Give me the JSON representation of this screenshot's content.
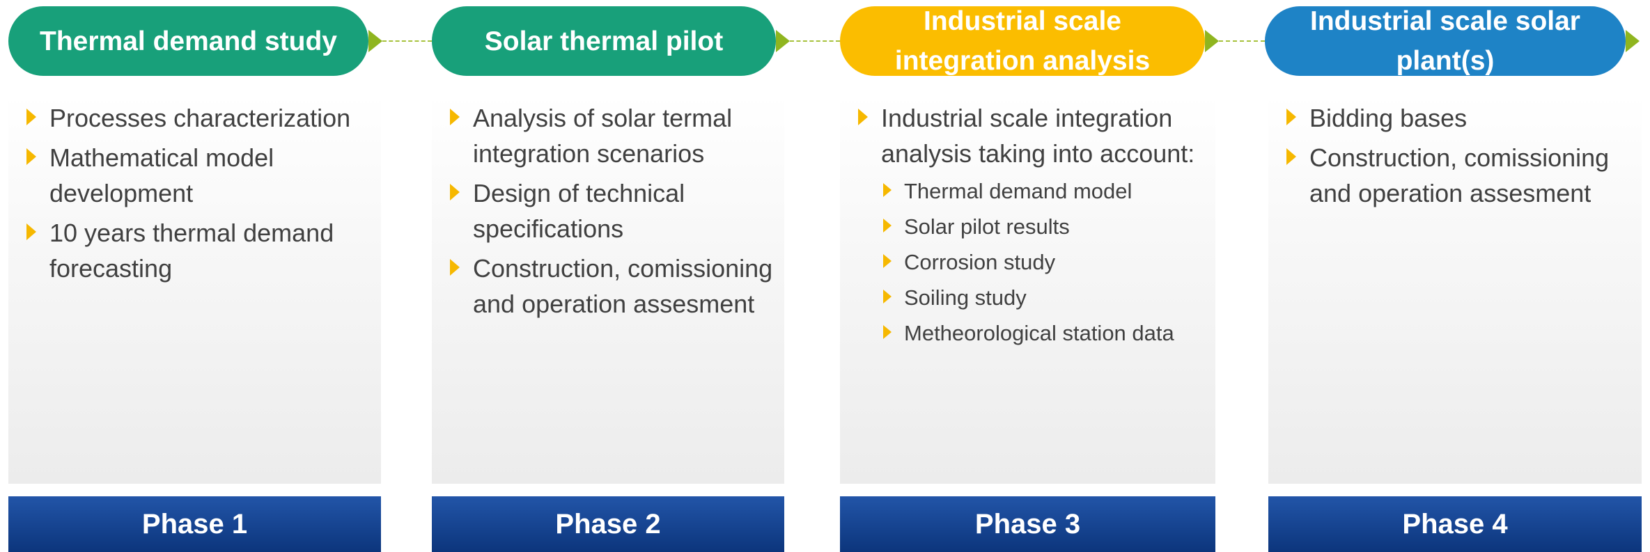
{
  "phases": [
    {
      "title": "Thermal demand study",
      "label": "Phase 1",
      "items": [
        {
          "text": "Processes characterization"
        },
        {
          "text": "Mathematical model development"
        },
        {
          "text": "10 years thermal demand forecasting"
        }
      ]
    },
    {
      "title": "Solar thermal pilot",
      "label": "Phase 2",
      "items": [
        {
          "text": "Analysis of solar termal integration scenarios"
        },
        {
          "text": "Design of technical specifications"
        },
        {
          "text": "Construction, comissioning and operation assesment"
        }
      ]
    },
    {
      "title": "Industrial scale integration analysis",
      "label": "Phase 3",
      "items": [
        {
          "text": "Industrial scale integration analysis taking into account:",
          "subitems": [
            "Thermal demand model",
            "Solar pilot results",
            "Corrosion study",
            "Soiling study",
            "Metheorological station data"
          ]
        }
      ]
    },
    {
      "title": "Industrial scale solar plant(s)",
      "label": "Phase 4",
      "items": [
        {
          "text": "Bidding bases"
        },
        {
          "text": "Construction, comissioning and operation assesment"
        }
      ]
    }
  ]
}
